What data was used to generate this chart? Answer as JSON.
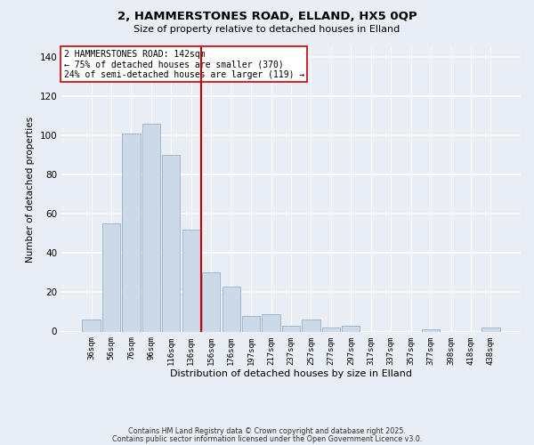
{
  "title_line1": "2, HAMMERSTONES ROAD, ELLAND, HX5 0QP",
  "title_line2": "Size of property relative to detached houses in Elland",
  "xlabel": "Distribution of detached houses by size in Elland",
  "ylabel": "Number of detached properties",
  "bar_labels": [
    "36sqm",
    "56sqm",
    "76sqm",
    "96sqm",
    "116sqm",
    "136sqm",
    "156sqm",
    "176sqm",
    "197sqm",
    "217sqm",
    "237sqm",
    "257sqm",
    "277sqm",
    "297sqm",
    "317sqm",
    "337sqm",
    "357sqm",
    "377sqm",
    "398sqm",
    "418sqm",
    "438sqm"
  ],
  "bar_heights": [
    6,
    55,
    101,
    106,
    90,
    52,
    30,
    23,
    8,
    9,
    3,
    6,
    2,
    3,
    0,
    0,
    0,
    1,
    0,
    0,
    2
  ],
  "bar_color": "#ccd9e8",
  "bar_edge_color": "#a0b8cc",
  "ylim": [
    0,
    145
  ],
  "yticks": [
    0,
    20,
    40,
    60,
    80,
    100,
    120,
    140
  ],
  "vline_x": 5.5,
  "vline_color": "#cc0000",
  "annotation_text": "2 HAMMERSTONES ROAD: 142sqm\n← 75% of detached houses are smaller (370)\n24% of semi-detached houses are larger (119) →",
  "annotation_box_color": "#ffffff",
  "annotation_box_edgecolor": "#cc0000",
  "footer_line1": "Contains HM Land Registry data © Crown copyright and database right 2025.",
  "footer_line2": "Contains public sector information licensed under the Open Government Licence v3.0.",
  "background_color": "#e8eef4"
}
